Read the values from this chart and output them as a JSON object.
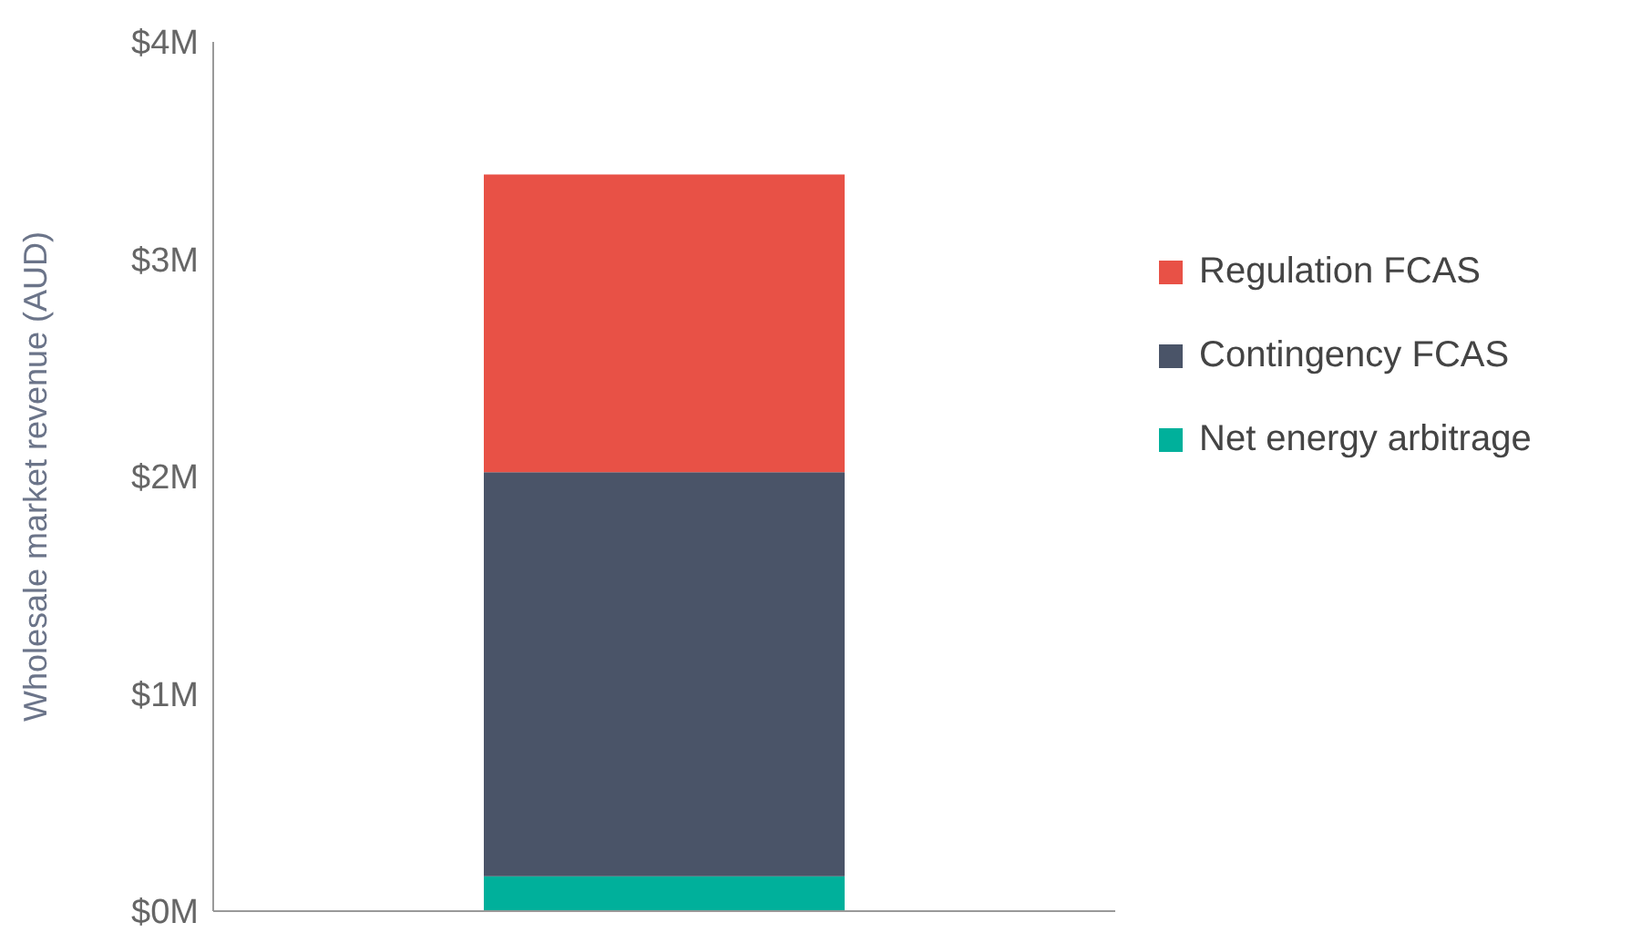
{
  "chart_data": {
    "type": "bar",
    "ylabel": "Wholesale market revenue (AUD)",
    "categories": [
      null
    ],
    "stacked": true,
    "legend": "right",
    "grid": false,
    "series": [
      {
        "name": "Net energy arbitrage",
        "color": "#00b09b",
        "values": [
          0.16
        ]
      },
      {
        "name": "Contingency FCAS",
        "color": "#4a5468",
        "values": [
          1.86
        ]
      },
      {
        "name": "Regulation FCAS",
        "color": "#e85146",
        "values": [
          1.37
        ]
      }
    ],
    "ylim": [
      0,
      4
    ],
    "yticks": [
      {
        "value": 0,
        "label": "$0M"
      },
      {
        "value": 1,
        "label": "$1M"
      },
      {
        "value": 2,
        "label": "$2M"
      },
      {
        "value": 3,
        "label": "$3M"
      },
      {
        "value": 4,
        "label": "$4M"
      }
    ]
  }
}
